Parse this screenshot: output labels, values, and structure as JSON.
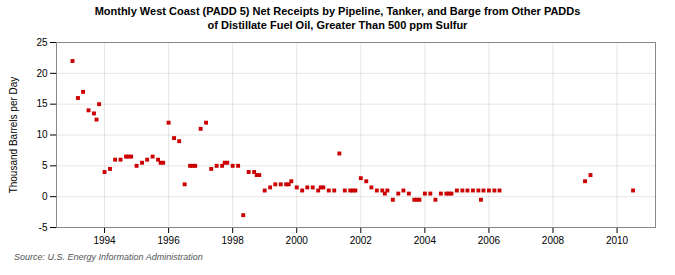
{
  "chart_data": {
    "type": "scatter",
    "title": "Monthly West Coast (PADD 5) Net Receipts by Pipeline, Tanker, and Barge from Other PADDs",
    "subtitle": "of Distillate Fuel Oil, Greater Than 500 ppm Sulfur",
    "ylabel": "Thousand Barrels per Day",
    "source": "Source: U.S. Energy Information Administration",
    "color": "#cc0000",
    "marker": "square",
    "grid": true,
    "xlim": [
      1992.5,
      2011.2
    ],
    "xticks": [
      1994,
      1996,
      1998,
      2000,
      2002,
      2004,
      2006,
      2008,
      2010
    ],
    "ylim": [
      -5,
      25
    ],
    "yticks": [
      -5,
      0,
      5,
      10,
      15,
      20,
      25
    ],
    "x": [
      1993.0,
      1993.17,
      1993.33,
      1993.5,
      1993.67,
      1993.75,
      1993.83,
      1994.0,
      1994.17,
      1994.33,
      1994.5,
      1994.67,
      1994.75,
      1994.83,
      1995.0,
      1995.17,
      1995.33,
      1995.5,
      1995.67,
      1995.75,
      1995.83,
      1996.0,
      1996.17,
      1996.33,
      1996.5,
      1996.67,
      1996.75,
      1996.83,
      1997.0,
      1997.17,
      1997.33,
      1997.5,
      1997.67,
      1997.75,
      1997.83,
      1998.0,
      1998.17,
      1998.33,
      1998.5,
      1998.67,
      1998.75,
      1998.83,
      1999.0,
      1999.17,
      1999.33,
      1999.5,
      1999.67,
      1999.75,
      1999.83,
      2000.0,
      2000.17,
      2000.33,
      2000.5,
      2000.67,
      2000.75,
      2000.83,
      2001.0,
      2001.17,
      2001.33,
      2001.5,
      2001.67,
      2001.75,
      2001.83,
      2002.0,
      2002.17,
      2002.33,
      2002.5,
      2002.67,
      2002.75,
      2002.83,
      2003.0,
      2003.17,
      2003.33,
      2003.5,
      2003.67,
      2003.75,
      2003.83,
      2004.0,
      2004.17,
      2004.33,
      2004.5,
      2004.67,
      2004.75,
      2004.83,
      2005.0,
      2005.17,
      2005.33,
      2005.5,
      2005.67,
      2005.75,
      2005.83,
      2006.0,
      2006.17,
      2006.33,
      2009.0,
      2009.17,
      2010.5
    ],
    "values": [
      22.0,
      16.0,
      17.0,
      14.0,
      13.5,
      12.5,
      15.0,
      4.0,
      4.5,
      6.0,
      6.0,
      6.5,
      6.5,
      6.5,
      5.0,
      5.5,
      6.0,
      6.5,
      6.0,
      5.5,
      5.5,
      12.0,
      9.5,
      9.0,
      2.0,
      5.0,
      5.0,
      5.0,
      11.0,
      12.0,
      4.5,
      5.0,
      5.0,
      5.5,
      5.5,
      5.0,
      5.0,
      -3.0,
      4.0,
      4.0,
      3.5,
      3.5,
      1.0,
      1.5,
      2.0,
      2.0,
      2.0,
      2.0,
      2.5,
      1.5,
      1.0,
      1.5,
      1.5,
      1.0,
      1.5,
      1.5,
      1.0,
      1.0,
      7.0,
      1.0,
      1.0,
      1.0,
      1.0,
      3.0,
      2.5,
      1.5,
      1.0,
      1.0,
      0.5,
      1.0,
      -0.5,
      0.5,
      1.0,
      0.5,
      -0.5,
      -0.5,
      -0.5,
      0.5,
      0.5,
      -0.5,
      0.5,
      0.5,
      0.5,
      0.5,
      1.0,
      1.0,
      1.0,
      1.0,
      1.0,
      -0.5,
      1.0,
      1.0,
      1.0,
      1.0,
      2.5,
      3.5,
      1.0
    ]
  }
}
